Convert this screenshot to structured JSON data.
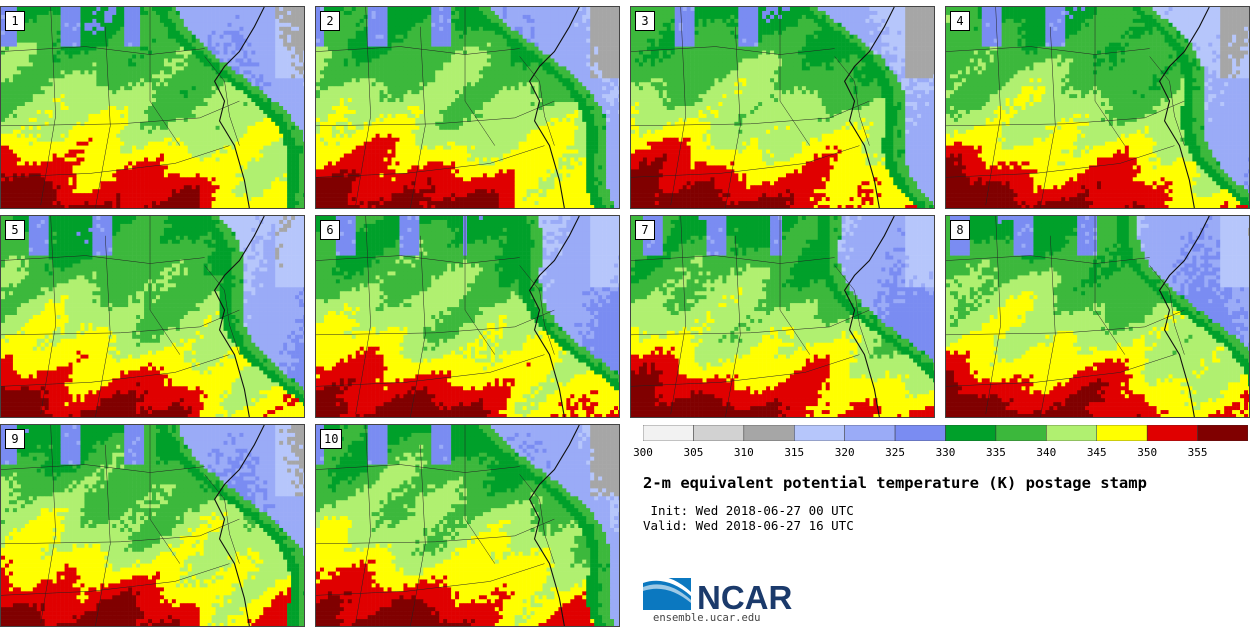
{
  "title": "2-m equivalent potential temperature (K) postage stamp",
  "init_line": " Init: Wed 2018-06-27 00 UTC",
  "valid_line": "Valid: Wed 2018-06-27 16 UTC",
  "logo_text": "NCAR",
  "site_url": "ensemble.ucar.edu",
  "chart_data": {
    "type": "heatmap",
    "members": [
      "1",
      "2",
      "3",
      "4",
      "5",
      "6",
      "7",
      "8",
      "9",
      "10"
    ],
    "colorbar": {
      "ticks": [
        "300",
        "305",
        "310",
        "315",
        "320",
        "325",
        "330",
        "335",
        "340",
        "345",
        "350",
        "355"
      ],
      "bins": [
        {
          "min": 300,
          "max": 305,
          "color": "#f2f2f2"
        },
        {
          "min": 305,
          "max": 310,
          "color": "#d2d2d2"
        },
        {
          "min": 310,
          "max": 315,
          "color": "#a6a6a6"
        },
        {
          "min": 315,
          "max": 320,
          "color": "#b6c6fb"
        },
        {
          "min": 320,
          "max": 325,
          "color": "#9aabf7"
        },
        {
          "min": 325,
          "max": 330,
          "color": "#7a8cf2"
        },
        {
          "min": 330,
          "max": 335,
          "color": "#00a02a"
        },
        {
          "min": 335,
          "max": 340,
          "color": "#3cb83c"
        },
        {
          "min": 340,
          "max": 345,
          "color": "#b0f070"
        },
        {
          "min": 345,
          "max": 350,
          "color": "#ffff00"
        },
        {
          "min": 350,
          "max": 355,
          "color": "#e00000"
        },
        {
          "min": 355,
          "max": 360,
          "color": "#800000"
        }
      ]
    }
  }
}
